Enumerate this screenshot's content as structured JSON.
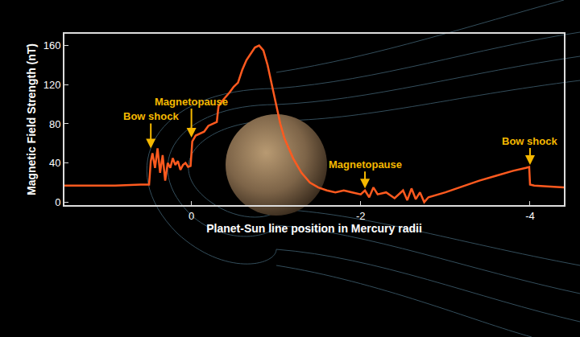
{
  "chart_data": {
    "type": "line",
    "xlabel": "Planet-Sun line position in Mercury radii",
    "ylabel": "Magnetic Field Strength (nT)",
    "color": "#ff5a1f",
    "grid": false,
    "xlim": [
      1.5,
      -4.4
    ],
    "ylim": [
      -3,
      172
    ],
    "xticks": [
      0,
      -2,
      -4
    ],
    "yticks": [
      0,
      40,
      80,
      120,
      160
    ],
    "x": [
      1.5,
      1.2,
      0.9,
      0.6,
      0.5,
      0.48,
      0.46,
      0.43,
      0.4,
      0.37,
      0.34,
      0.31,
      0.28,
      0.25,
      0.22,
      0.19,
      0.16,
      0.13,
      0.1,
      0.07,
      0.04,
      0.01,
      -0.01,
      -0.05,
      -0.1,
      -0.15,
      -0.2,
      -0.25,
      -0.3,
      -0.32,
      -0.38,
      -0.45,
      -0.5,
      -0.55,
      -0.6,
      -0.65,
      -0.7,
      -0.75,
      -0.8,
      -0.85,
      -0.9,
      -0.95,
      -1.0,
      -1.05,
      -1.1,
      -1.15,
      -1.2,
      -1.3,
      -1.4,
      -1.5,
      -1.6,
      -1.7,
      -1.8,
      -1.9,
      -2.0,
      -2.05,
      -2.1,
      -2.15,
      -2.2,
      -2.3,
      -2.4,
      -2.5,
      -2.55,
      -2.6,
      -2.65,
      -2.7,
      -2.75,
      -2.8,
      -3.0,
      -3.2,
      -3.4,
      -3.6,
      -3.8,
      -3.95,
      -3.99,
      -4.0,
      -4.05,
      -4.2,
      -4.4
    ],
    "values": [
      17,
      17,
      17,
      18,
      18,
      42,
      50,
      35,
      55,
      30,
      48,
      22,
      40,
      35,
      45,
      38,
      42,
      33,
      38,
      40,
      36,
      37,
      62,
      68,
      70,
      72,
      78,
      80,
      82,
      98,
      105,
      112,
      118,
      122,
      135,
      145,
      152,
      158,
      160,
      155,
      140,
      120,
      100,
      80,
      65,
      55,
      45,
      30,
      20,
      15,
      12,
      10,
      12,
      10,
      8,
      12,
      5,
      15,
      8,
      10,
      4,
      12,
      2,
      14,
      3,
      10,
      0,
      5,
      10,
      16,
      22,
      27,
      32,
      35,
      36,
      18,
      17,
      16,
      15
    ],
    "annotations": [
      {
        "text": "Bow shock",
        "x": 0.48,
        "y": 55
      },
      {
        "text": "Magnetopause",
        "x": 0.0,
        "y": 66
      },
      {
        "text": "Magnetopause",
        "x": -2.05,
        "y": 14
      },
      {
        "text": "Bow shock",
        "x": -4.0,
        "y": 38
      }
    ]
  }
}
